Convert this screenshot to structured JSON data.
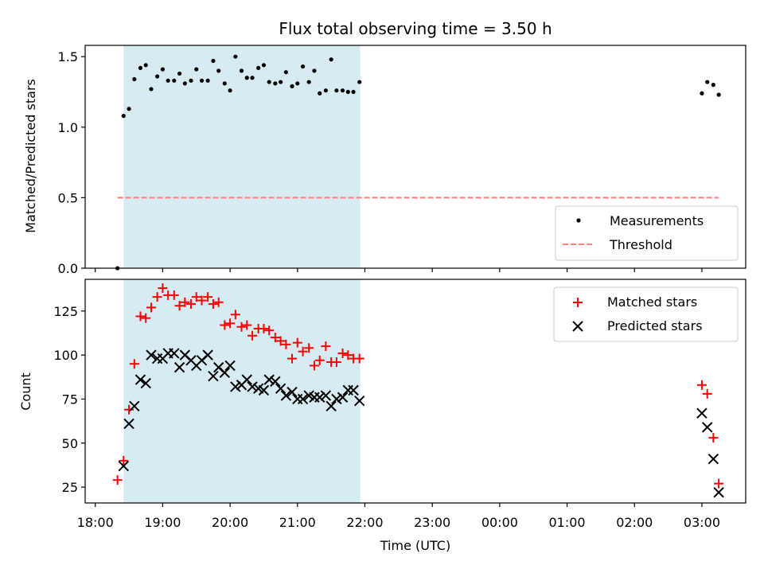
{
  "chart_data": [
    {
      "type": "scatter",
      "title": "Flux total observing time = 3.50 h",
      "ylabel": "Matched/Predicted stars",
      "xlabel": "",
      "xlim": [
        17.85,
        27.65
      ],
      "ylim": [
        0.0,
        1.58
      ],
      "yticks": [
        "0.0",
        "0.5",
        "1.0",
        "1.5"
      ],
      "shaded_interval": [
        18.42,
        21.93
      ],
      "shade_color": "#add8e6",
      "threshold": {
        "name": "Threshold",
        "y": 0.5,
        "x": [
          18.33,
          27.25
        ],
        "color": "#ff7f7f"
      },
      "legend_position": "lower-right",
      "series": [
        {
          "name": "Measurements",
          "color": "#000000",
          "x": [
            18.33,
            18.42,
            18.5,
            18.58,
            18.67,
            18.75,
            18.83,
            18.92,
            19.0,
            19.08,
            19.17,
            19.25,
            19.33,
            19.42,
            19.5,
            19.58,
            19.67,
            19.75,
            19.83,
            19.92,
            20.0,
            20.08,
            20.17,
            20.25,
            20.33,
            20.42,
            20.5,
            20.58,
            20.67,
            20.75,
            20.83,
            20.92,
            21.0,
            21.08,
            21.17,
            21.25,
            21.33,
            21.42,
            21.5,
            21.58,
            21.67,
            21.75,
            21.83,
            21.92,
            27.0,
            27.08,
            27.17,
            27.25
          ],
          "y": [
            0.0,
            1.08,
            1.13,
            1.34,
            1.42,
            1.44,
            1.27,
            1.36,
            1.41,
            1.33,
            1.33,
            1.38,
            1.31,
            1.33,
            1.41,
            1.33,
            1.33,
            1.47,
            1.4,
            1.31,
            1.26,
            1.5,
            1.4,
            1.35,
            1.35,
            1.42,
            1.44,
            1.32,
            1.31,
            1.32,
            1.39,
            1.29,
            1.31,
            1.43,
            1.32,
            1.4,
            1.24,
            1.26,
            1.48,
            1.26,
            1.26,
            1.25,
            1.25,
            1.32,
            1.24,
            1.32,
            1.3,
            1.23
          ]
        }
      ]
    },
    {
      "type": "scatter",
      "title": "",
      "ylabel": "Count",
      "xlabel": "Time (UTC)",
      "xlim": [
        17.85,
        27.65
      ],
      "ylim": [
        16,
        143
      ],
      "yticks": [
        "25",
        "50",
        "75",
        "100",
        "125"
      ],
      "xticks": [
        "18:00",
        "19:00",
        "20:00",
        "21:00",
        "22:00",
        "23:00",
        "00:00",
        "01:00",
        "02:00",
        "03:00"
      ],
      "shaded_interval": [
        18.42,
        21.93
      ],
      "shade_color": "#add8e6",
      "legend_position": "upper-right",
      "series": [
        {
          "name": "Matched stars",
          "marker": "plus",
          "color": "#ff0000",
          "x": [
            18.33,
            18.42,
            18.5,
            18.58,
            18.67,
            18.75,
            18.83,
            18.92,
            19.0,
            19.08,
            19.17,
            19.25,
            19.33,
            19.42,
            19.5,
            19.58,
            19.67,
            19.75,
            19.83,
            19.92,
            20.0,
            20.08,
            20.17,
            20.25,
            20.33,
            20.42,
            20.5,
            20.58,
            20.67,
            20.75,
            20.83,
            20.92,
            21.0,
            21.08,
            21.17,
            21.25,
            21.33,
            21.42,
            21.5,
            21.58,
            21.67,
            21.75,
            21.83,
            21.92,
            27.0,
            27.08,
            27.17,
            27.25
          ],
          "y": [
            29,
            40,
            69,
            95,
            122,
            121,
            127,
            133,
            138,
            134,
            134,
            128,
            130,
            129,
            133,
            131,
            133,
            129,
            130,
            117,
            118,
            123,
            116,
            117,
            111,
            115,
            115,
            114,
            110,
            108,
            106,
            98,
            107,
            102,
            104,
            94,
            97,
            105,
            96,
            96,
            101,
            100,
            98,
            98,
            83,
            78,
            53,
            27
          ]
        },
        {
          "name": "Predicted stars",
          "marker": "x",
          "color": "#000000",
          "x": [
            18.42,
            18.5,
            18.58,
            18.67,
            18.75,
            18.83,
            18.92,
            19.0,
            19.08,
            19.17,
            19.25,
            19.33,
            19.42,
            19.5,
            19.58,
            19.67,
            19.75,
            19.83,
            19.92,
            20.0,
            20.08,
            20.17,
            20.25,
            20.33,
            20.42,
            20.5,
            20.58,
            20.67,
            20.75,
            20.83,
            20.92,
            21.0,
            21.08,
            21.17,
            21.25,
            21.33,
            21.42,
            21.5,
            21.58,
            21.67,
            21.75,
            21.83,
            21.92,
            27.0,
            27.08,
            27.17,
            27.25
          ],
          "y": [
            37,
            61,
            71,
            86,
            84,
            100,
            98,
            98,
            101,
            101,
            93,
            100,
            97,
            94,
            97,
            100,
            88,
            93,
            90,
            94,
            82,
            83,
            86,
            82,
            81,
            80,
            86,
            85,
            81,
            77,
            79,
            75,
            75,
            77,
            76,
            76,
            77,
            71,
            75,
            76,
            80,
            80,
            74,
            67,
            59,
            41,
            22
          ]
        }
      ]
    }
  ]
}
